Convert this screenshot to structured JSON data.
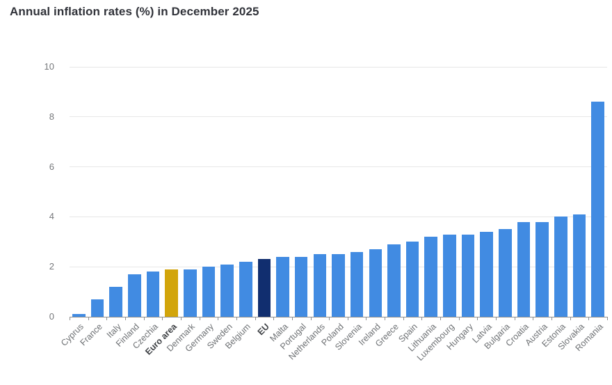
{
  "chart_data": {
    "type": "bar",
    "title": "Annual inflation rates (%) in December 2025",
    "categories": [
      "Cyprus",
      "France",
      "Italy",
      "Finland",
      "Czechia",
      "Euro area",
      "Denmark",
      "Germany",
      "Sweden",
      "Belgium",
      "EU",
      "Malta",
      "Portugal",
      "Netherlands",
      "Poland",
      "Slovenia",
      "Ireland",
      "Greece",
      "Spain",
      "Lithuania",
      "Luxembourg",
      "Hungary",
      "Latvia",
      "Bulgaria",
      "Croatia",
      "Austria",
      "Estonia",
      "Slovakia",
      "Romania"
    ],
    "values": [
      0.1,
      0.7,
      1.2,
      1.7,
      1.8,
      1.9,
      1.9,
      2.0,
      2.1,
      2.2,
      2.3,
      2.4,
      2.4,
      2.5,
      2.5,
      2.6,
      2.7,
      2.9,
      3.0,
      3.2,
      3.3,
      3.3,
      3.4,
      3.5,
      3.8,
      3.8,
      4.0,
      4.1,
      8.6
    ],
    "xlabel": "",
    "ylabel": "",
    "ylim": [
      0,
      10
    ],
    "yticks": [
      0,
      2,
      4,
      6,
      8,
      10
    ],
    "grid": true,
    "legend": "none",
    "bar_color": "#418BE2",
    "highlights": {
      "Euro area": "#D2A50B",
      "EU": "#112E6F"
    },
    "bold_categories": [
      "Euro area",
      "EU"
    ]
  },
  "colors": {
    "background": "#FFFFFF",
    "title": "#303239",
    "grid": "#E7E7E7",
    "axis": "#8F8F8F",
    "y_tick_label": "#75777A",
    "x_tick_label": "#6E7174",
    "x_tick_label_bold": "#3E4145"
  }
}
